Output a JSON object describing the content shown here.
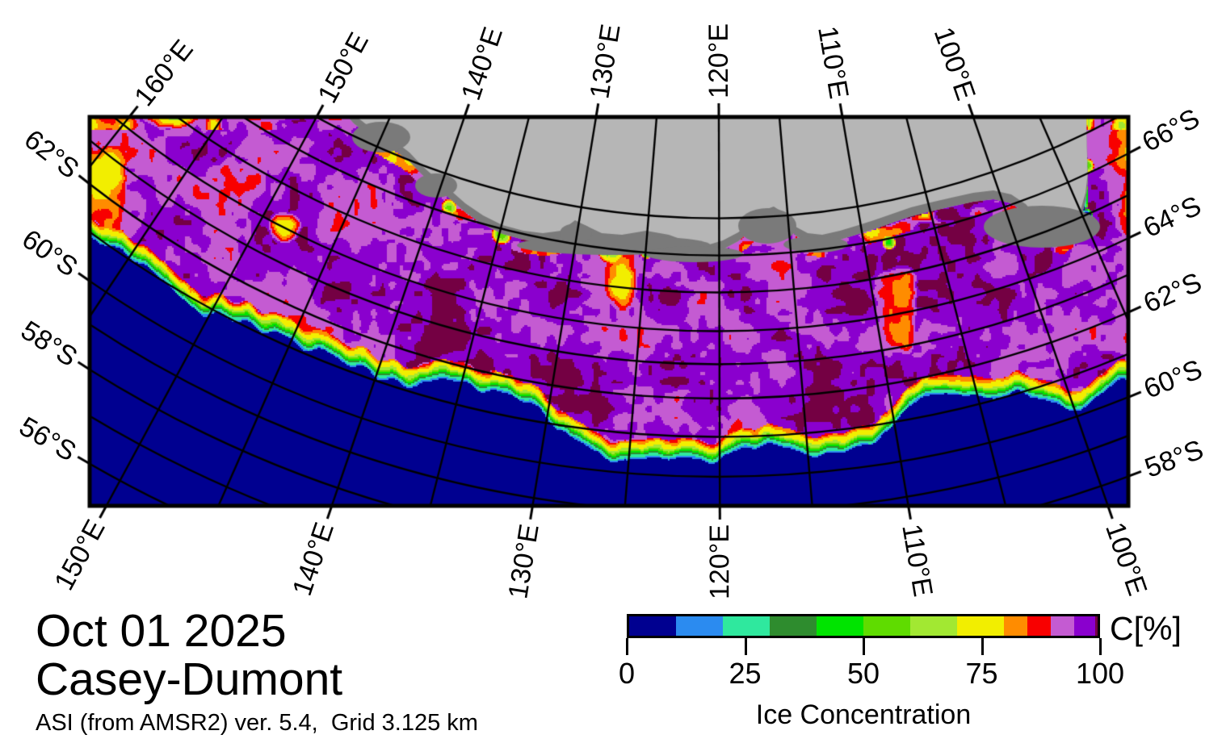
{
  "figure": {
    "date": "Oct 01 2025",
    "region": "Casey-Dumont",
    "product": "ASI (from AMSR2) ver. 5.4,  Grid 3.125 km"
  },
  "colorbar": {
    "unit_label": "C[%]",
    "axis_label": "Ice Concentration",
    "ticks": [
      {
        "value": 0,
        "label": "0"
      },
      {
        "value": 25,
        "label": "25"
      },
      {
        "value": 50,
        "label": "50"
      },
      {
        "value": 75,
        "label": "75"
      },
      {
        "value": 100,
        "label": "100"
      }
    ],
    "segments": [
      {
        "from": 0,
        "to": 10,
        "color": "#000090"
      },
      {
        "from": 10,
        "to": 20,
        "color": "#2B8BF0"
      },
      {
        "from": 20,
        "to": 30,
        "color": "#2FE89E"
      },
      {
        "from": 30,
        "to": 40,
        "color": "#2E8C2E"
      },
      {
        "from": 40,
        "to": 50,
        "color": "#00E400"
      },
      {
        "from": 50,
        "to": 60,
        "color": "#5FDC00"
      },
      {
        "from": 60,
        "to": 70,
        "color": "#A2E832"
      },
      {
        "from": 70,
        "to": 80,
        "color": "#F2EE00"
      },
      {
        "from": 80,
        "to": 85,
        "color": "#FF8C00"
      },
      {
        "from": 85,
        "to": 90,
        "color": "#F80000"
      },
      {
        "from": 90,
        "to": 95,
        "color": "#C45BD2"
      },
      {
        "from": 95,
        "to": 99.5,
        "color": "#8A00CE"
      },
      {
        "from": 99.5,
        "to": 100,
        "color": "#740043"
      }
    ]
  },
  "map": {
    "ocean_color": "#000090",
    "land_color": "#B6B6B6",
    "coast_shelf_color": "#7A7A7A",
    "graticule_color": "#000000",
    "frame_color": "#000000",
    "axis_labels": {
      "top": [
        {
          "lon": 160,
          "label": "160°E"
        },
        {
          "lon": 150,
          "label": "150°E"
        },
        {
          "lon": 140,
          "label": "140°E"
        },
        {
          "lon": 130,
          "label": "130°E"
        },
        {
          "lon": 120,
          "label": "120°E"
        },
        {
          "lon": 110,
          "label": "110°E"
        },
        {
          "lon": 100,
          "label": "100°E"
        }
      ],
      "bottom": [
        {
          "lon": 150,
          "label": "150°E"
        },
        {
          "lon": 140,
          "label": "140°E"
        },
        {
          "lon": 130,
          "label": "130°E"
        },
        {
          "lon": 120,
          "label": "120°E"
        },
        {
          "lon": 110,
          "label": "110°E"
        },
        {
          "lon": 100,
          "label": "100°E"
        }
      ],
      "left": [
        {
          "lat": 62,
          "label": "62°S"
        },
        {
          "lat": 60,
          "label": "60°S"
        },
        {
          "lat": 58,
          "label": "58°S"
        },
        {
          "lat": 56,
          "label": "56°S"
        }
      ],
      "right": [
        {
          "lat": 66,
          "label": "66°S"
        },
        {
          "lat": 64,
          "label": "64°S"
        },
        {
          "lat": 62,
          "label": "62°S"
        },
        {
          "lat": 60,
          "label": "60°S"
        },
        {
          "lat": 58,
          "label": "58°S"
        }
      ]
    },
    "graticule": {
      "meridians_deg_e": [
        95,
        100,
        105,
        110,
        115,
        120,
        125,
        130,
        135,
        140,
        145,
        150,
        155,
        160
      ],
      "parallels_deg_s": [
        56,
        57,
        58,
        59,
        60,
        61,
        62,
        63,
        64,
        65,
        66,
        67
      ]
    }
  }
}
